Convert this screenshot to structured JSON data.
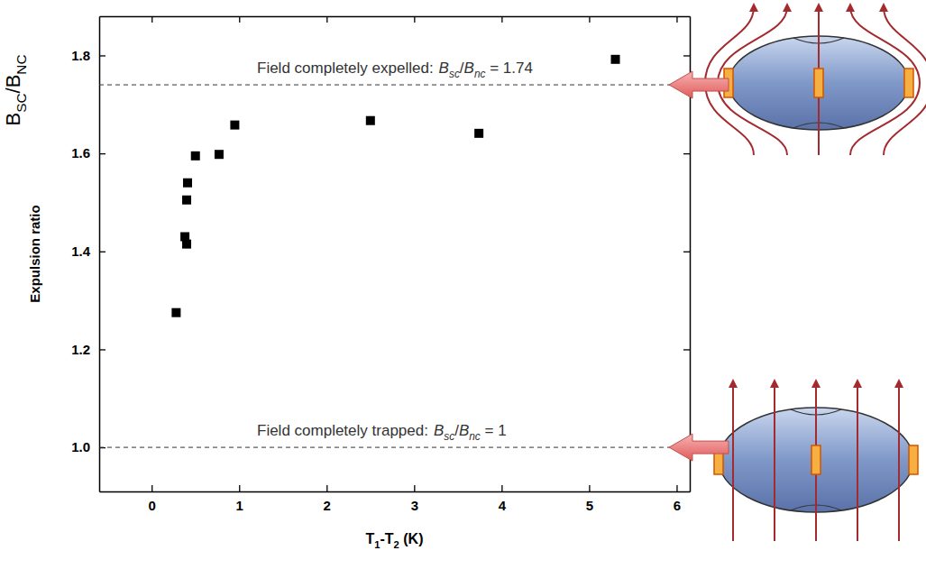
{
  "chart_data": {
    "type": "scatter",
    "x_label": [
      {
        "text": "T"
      },
      {
        "text": "1",
        "sub": true
      },
      {
        "text": "-T"
      },
      {
        "text": "2",
        "sub": true
      },
      {
        "text": " (K)"
      }
    ],
    "y_label": "Expulsion ratio",
    "y_symbol": [
      {
        "text": "B"
      },
      {
        "text": "SC",
        "sub": true
      },
      {
        "text": "/B"
      },
      {
        "text": "NC",
        "sub": true
      }
    ],
    "x": [
      0.28,
      0.38,
      0.4,
      0.4,
      0.41,
      0.5,
      0.77,
      0.95,
      2.5,
      3.74,
      5.3
    ],
    "values": [
      1.275,
      1.43,
      1.415,
      1.505,
      1.54,
      1.595,
      1.598,
      1.658,
      1.667,
      1.641,
      1.792
    ],
    "color": "#000000",
    "marker": "square",
    "xlim": [
      -0.6,
      6.15
    ],
    "ylim": [
      0.91,
      1.88
    ],
    "xticks": [
      0,
      1,
      2,
      3,
      4,
      5,
      6
    ],
    "yticks": [
      {
        "value": 1,
        "label": "1.0"
      },
      {
        "value": 1.2,
        "label": "1.2"
      },
      {
        "value": 1.4,
        "label": "1.4"
      },
      {
        "value": 1.6,
        "label": "1.6"
      },
      {
        "value": 1.8,
        "label": "1.8"
      }
    ],
    "reference_lines": [
      {
        "value": 1.74,
        "label": "Field completely expelled:",
        "formula": [
          {
            "text": "B",
            "italic": true
          },
          {
            "text": "sc",
            "sub": true,
            "italic": true
          },
          {
            "text": "/"
          },
          {
            "text": "B",
            "italic": true
          },
          {
            "text": "nc",
            "sub": true,
            "italic": true
          },
          {
            "text": " = 1.74"
          }
        ]
      },
      {
        "value": 1,
        "label": "Field completely trapped:",
        "formula": [
          {
            "text": "B",
            "italic": true
          },
          {
            "text": "sc",
            "sub": true,
            "italic": true
          },
          {
            "text": "/"
          },
          {
            "text": "B",
            "italic": true
          },
          {
            "text": "nc",
            "sub": true,
            "italic": true
          },
          {
            "text": " = 1"
          }
        ]
      }
    ]
  }
}
